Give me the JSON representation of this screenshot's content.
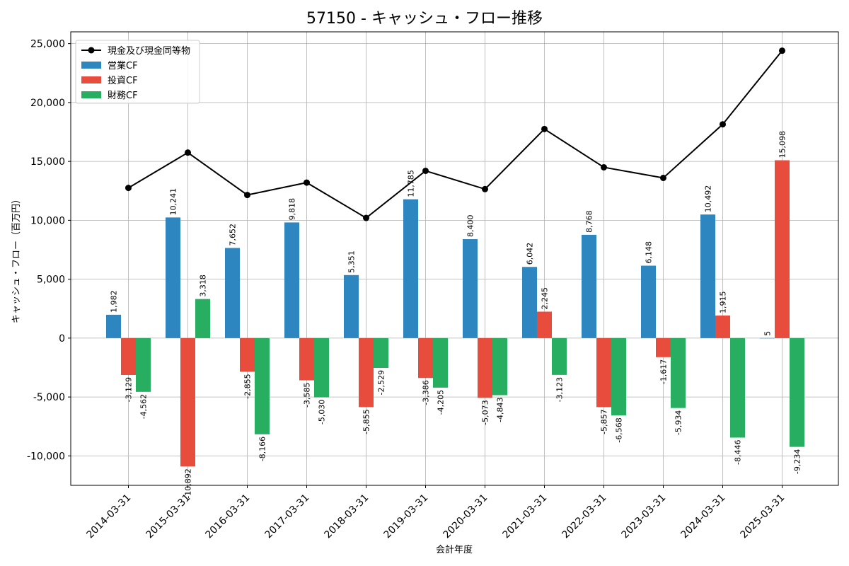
{
  "chart_data": {
    "type": "bar",
    "title": "57150 - キャッシュ・フロー推移",
    "xlabel": "会計年度",
    "ylabel": "キャッシュ・フロー（百万円）",
    "ylim": [
      -12500,
      26000
    ],
    "yticks": [
      -10000,
      -5000,
      0,
      5000,
      10000,
      15000,
      20000,
      25000
    ],
    "ytick_labels": [
      "-10,000",
      "-5,000",
      "0",
      "5,000",
      "10,000",
      "15,000",
      "20,000",
      "25,000"
    ],
    "grid": true,
    "legend_position": "top-left",
    "categories": [
      "2014-03-31",
      "2015-03-31",
      "2016-03-31",
      "2017-03-31",
      "2018-03-31",
      "2019-03-31",
      "2020-03-31",
      "2021-03-31",
      "2022-03-31",
      "2023-03-31",
      "2024-03-31",
      "2025-03-31"
    ],
    "series": [
      {
        "name": "営業CF",
        "kind": "bar",
        "color": "#2e86c1",
        "values": [
          1982,
          10241,
          7652,
          9818,
          5351,
          11785,
          8400,
          6042,
          8768,
          6148,
          10492,
          5
        ],
        "labels": [
          "1,982",
          "10,241",
          "7,652",
          "9,818",
          "5,351",
          "11,785",
          "8,400",
          "6,042",
          "8,768",
          "6,148",
          "10,492",
          "5"
        ]
      },
      {
        "name": "投資CF",
        "kind": "bar",
        "color": "#e74c3c",
        "values": [
          -3129,
          -10892,
          -2855,
          -3585,
          -5855,
          -3386,
          -5073,
          2245,
          -5857,
          -1617,
          1915,
          15098
        ],
        "labels": [
          "-3,129",
          "-10,892",
          "-2,855",
          "-3,585",
          "-5,855",
          "-3,386",
          "-5,073",
          "2,245",
          "-5,857",
          "-1,617",
          "1,915",
          "15,098"
        ]
      },
      {
        "name": "財務CF",
        "kind": "bar",
        "color": "#27ae60",
        "values": [
          -4562,
          3318,
          -8166,
          -5030,
          -2529,
          -4205,
          -4843,
          -3123,
          -6568,
          -5934,
          -8446,
          -9234
        ],
        "labels": [
          "-4,562",
          "3,318",
          "-8,166",
          "-5,030",
          "-2,529",
          "-4,205",
          "-4,843",
          "-3,123",
          "-6,568",
          "-5,934",
          "-8,446",
          "-9,234"
        ]
      },
      {
        "name": "現金及び現金同等物",
        "kind": "line",
        "color": "#000000",
        "values": [
          12750,
          15750,
          12150,
          13200,
          10200,
          14200,
          12650,
          17750,
          14500,
          13600,
          18150,
          24400
        ]
      }
    ]
  }
}
